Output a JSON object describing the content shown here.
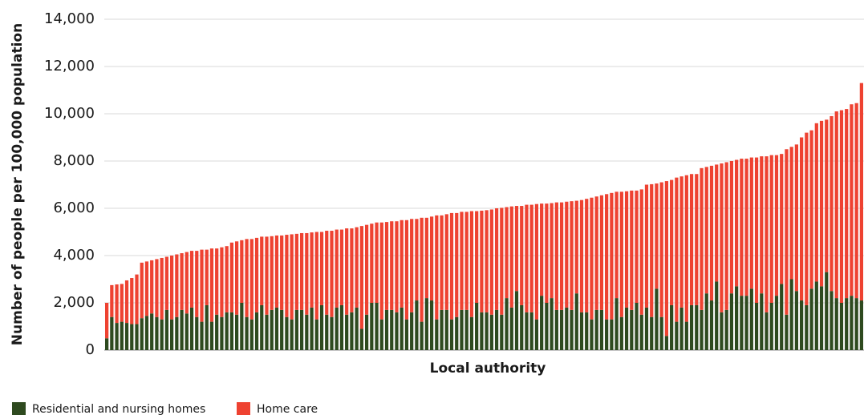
{
  "chart_data": {
    "type": "stacked_bar",
    "y_label": "Number of people per 100,000 population",
    "x_label": "Local authority",
    "categories": [
      null,
      null,
      null,
      null,
      null,
      null,
      null,
      null,
      null,
      null,
      null,
      null,
      null,
      null,
      null,
      null,
      null,
      null,
      null,
      null,
      null,
      null,
      null,
      null,
      null,
      null,
      null,
      null,
      null,
      null,
      null,
      null,
      null,
      null,
      null,
      null,
      null,
      null,
      null,
      null,
      null,
      null,
      null,
      null,
      null,
      null,
      null,
      null,
      null,
      null,
      null,
      null,
      null,
      null,
      null,
      null,
      null,
      null,
      null,
      null,
      null,
      null,
      null,
      null,
      null,
      null,
      null,
      null,
      null,
      null,
      null,
      null,
      null,
      null,
      null,
      null,
      null,
      null,
      null,
      null,
      null,
      null,
      null,
      null,
      null,
      null,
      null,
      null,
      null,
      null,
      null,
      null,
      null,
      null,
      null,
      null,
      null,
      null,
      null,
      null,
      null,
      null,
      null,
      null,
      null,
      null,
      null,
      null,
      null,
      null,
      null,
      null,
      null,
      null,
      null,
      null,
      null,
      null,
      null,
      null,
      null,
      null,
      null,
      null,
      null,
      null,
      null,
      null,
      null,
      null,
      null,
      null,
      null,
      null,
      null,
      null,
      null,
      null,
      null,
      null,
      null,
      null,
      null,
      null,
      null,
      null,
      null,
      null,
      null,
      null,
      null,
      null
    ],
    "series": [
      {
        "name": "Residential and nursing homes",
        "color": "#2e4a1f",
        "values": [
          500,
          1400,
          1150,
          1200,
          1150,
          1100,
          1100,
          1350,
          1450,
          1550,
          1400,
          1300,
          1700,
          1300,
          1400,
          1700,
          1550,
          1800,
          1400,
          1200,
          1900,
          1200,
          1500,
          1400,
          1600,
          1600,
          1500,
          2000,
          1400,
          1300,
          1600,
          1900,
          1500,
          1700,
          1800,
          1700,
          1400,
          1300,
          1700,
          1700,
          1500,
          1800,
          1300,
          1900,
          1500,
          1400,
          1800,
          1900,
          1500,
          1600,
          1800,
          900,
          1500,
          2000,
          2000,
          1300,
          1700,
          1700,
          1600,
          1800,
          1300,
          1600,
          2100,
          1200,
          2200,
          2100,
          1300,
          1700,
          1700,
          1300,
          1400,
          1700,
          1700,
          1400,
          2000,
          1600,
          1600,
          1500,
          1700,
          1500,
          2200,
          1800,
          2500,
          1900,
          1600,
          1600,
          1300,
          2300,
          2000,
          2200,
          1700,
          1700,
          1800,
          1700,
          2400,
          1600,
          1600,
          1300,
          1700,
          1700,
          1300,
          1300,
          2200,
          1400,
          1800,
          1700,
          2000,
          1500,
          1800,
          1400,
          2600,
          1400,
          600,
          1900,
          1200,
          1800,
          1200,
          1900,
          1900,
          1700,
          2400,
          2100,
          2900,
          1600,
          1700,
          2400,
          2700,
          2300,
          2300,
          2600,
          2000,
          2400,
          1600,
          2000,
          2300,
          2800,
          1500,
          3000,
          2500,
          2100,
          1900,
          2600,
          2900,
          2700,
          3300,
          2500,
          2200,
          2000,
          2200,
          2300,
          2200,
          2100
        ]
      },
      {
        "name": "Home care",
        "color": "#ee4231",
        "values": [
          1500,
          1350,
          1630,
          1600,
          1800,
          1950,
          2100,
          2350,
          2300,
          2250,
          2450,
          2600,
          2250,
          2700,
          2650,
          2400,
          2600,
          2400,
          2800,
          3050,
          2350,
          3100,
          2800,
          2950,
          2800,
          2950,
          3100,
          2650,
          3300,
          3400,
          3150,
          2900,
          3300,
          3120,
          3050,
          3150,
          3480,
          3600,
          3220,
          3250,
          3450,
          3180,
          3700,
          3100,
          3550,
          3650,
          3300,
          3200,
          3650,
          3550,
          3400,
          4350,
          3800,
          3350,
          3400,
          4100,
          3720,
          3750,
          3850,
          3700,
          4200,
          3950,
          3450,
          4400,
          3400,
          3550,
          4400,
          4000,
          4050,
          4500,
          4400,
          4150,
          4150,
          4480,
          3880,
          4300,
          4320,
          4450,
          4300,
          4520,
          3850,
          4280,
          3600,
          4200,
          4550,
          4550,
          4880,
          3900,
          4200,
          4020,
          4550,
          4550,
          4480,
          4600,
          3920,
          4750,
          4800,
          5150,
          4800,
          4850,
          5300,
          5350,
          4500,
          5300,
          4920,
          5050,
          4750,
          5300,
          5200,
          5620,
          4450,
          5700,
          6550,
          5300,
          6100,
          5550,
          6200,
          5550,
          5550,
          6000,
          5350,
          5700,
          4950,
          6300,
          6250,
          5600,
          5350,
          5800,
          5800,
          5550,
          6150,
          5800,
          6600,
          6250,
          5950,
          5500,
          7000,
          5600,
          6200,
          6900,
          7300,
          6700,
          6700,
          7000,
          6450,
          7400,
          7900,
          8150,
          8000,
          8100,
          8250,
          9200
        ]
      }
    ],
    "ylim": [
      0,
      14000
    ],
    "yticks": [
      0,
      {
        "value": 2000,
        "label": "2,000"
      },
      {
        "value": 4000,
        "label": "4,000"
      },
      {
        "value": 6000,
        "label": "6,000"
      },
      {
        "value": 8000,
        "label": "8,000"
      },
      {
        "value": 10000,
        "label": "10,000"
      },
      {
        "value": 12000,
        "label": "12,000"
      },
      {
        "value": 14000,
        "label": "14,000"
      }
    ],
    "grid": true,
    "legend": "bottom-left"
  }
}
